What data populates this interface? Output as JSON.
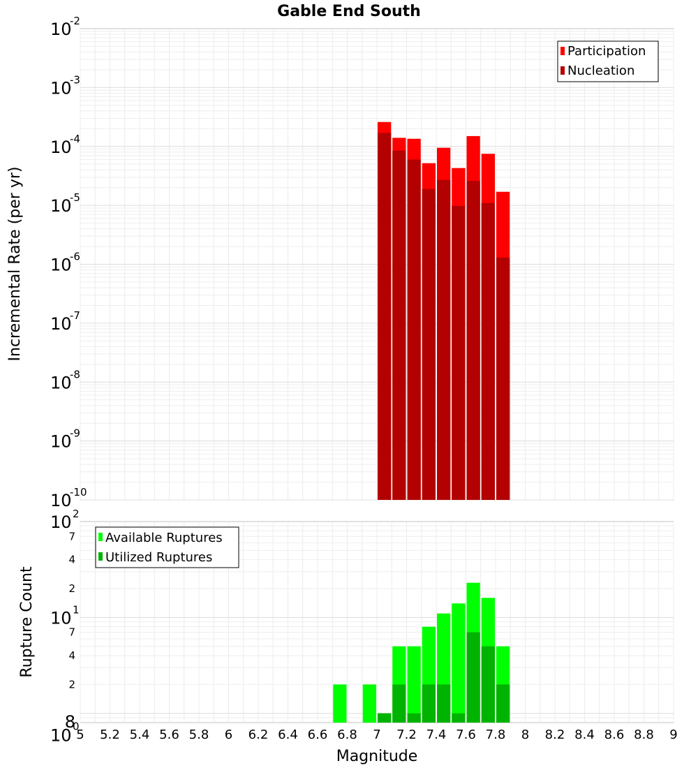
{
  "chart_data": [
    {
      "type": "bar",
      "title": "Gable End South",
      "xlabel": "",
      "ylabel": "Incremental Rate (per yr)",
      "yscale": "log",
      "ylim": [
        1e-10,
        0.01
      ],
      "xlim": [
        5,
        9
      ],
      "grid": true,
      "legend_position": "top-right",
      "ytick_labels": [
        {
          "base": "10",
          "exp": "-10",
          "value": 1e-10
        },
        {
          "base": "10",
          "exp": "-9",
          "value": 1e-09
        },
        {
          "base": "10",
          "exp": "-8",
          "value": 1e-08
        },
        {
          "base": "10",
          "exp": "-7",
          "value": 1e-07
        },
        {
          "base": "10",
          "exp": "-6",
          "value": 1e-06
        },
        {
          "base": "10",
          "exp": "-5",
          "value": 1e-05
        },
        {
          "base": "10",
          "exp": "-4",
          "value": 0.0001
        },
        {
          "base": "10",
          "exp": "-3",
          "value": 0.001
        },
        {
          "base": "10",
          "exp": "-2",
          "value": 0.01
        }
      ],
      "x": [
        7.05,
        7.15,
        7.25,
        7.35,
        7.45,
        7.55,
        7.65,
        7.75,
        7.85
      ],
      "series": [
        {
          "name": "Participation",
          "color": "#ff0000",
          "values": [
            0.00026,
            0.00014,
            0.000135,
            5.2e-05,
            9.5e-05,
            4.3e-05,
            0.00015,
            7.5e-05,
            1.7e-05
          ]
        },
        {
          "name": "Nucleation",
          "color": "#b30000",
          "values": [
            0.00017,
            8.5e-05,
            6e-05,
            1.9e-05,
            2.7e-05,
            9.8e-06,
            2.6e-05,
            1.1e-05,
            1.3e-06
          ]
        }
      ]
    },
    {
      "type": "bar",
      "title": "",
      "xlabel": "Magnitude",
      "ylabel": "Rupture Count",
      "yscale": "log",
      "ylim": [
        0.8,
        100
      ],
      "xlim": [
        5,
        9
      ],
      "grid": true,
      "legend_position": "top-left",
      "ytick_labels": [
        {
          "base": "10",
          "exp": "0",
          "value": 1
        },
        {
          "base": "10",
          "exp": "1",
          "value": 10
        },
        {
          "base": "10",
          "exp": "2",
          "value": 100
        }
      ],
      "minor_tick_labels": [
        {
          "label": "8",
          "value": 0.8
        },
        {
          "label": "2",
          "value": 2
        },
        {
          "label": "4",
          "value": 4
        },
        {
          "label": "7",
          "value": 7
        },
        {
          "label": "2",
          "value": 20
        },
        {
          "label": "4",
          "value": 40
        },
        {
          "label": "7",
          "value": 70
        }
      ],
      "x": [
        6.75,
        6.95,
        7.05,
        7.15,
        7.25,
        7.35,
        7.45,
        7.55,
        7.65,
        7.75,
        7.85
      ],
      "series": [
        {
          "name": "Available Ruptures",
          "color": "#00ff00",
          "values": [
            2,
            2,
            1,
            5,
            5,
            8,
            11,
            14,
            23,
            16,
            5
          ]
        },
        {
          "name": "Utilized Ruptures",
          "color": "#00b300",
          "values": [
            0,
            0,
            1,
            2,
            1,
            2,
            2,
            1,
            7,
            5,
            2
          ]
        }
      ],
      "xtick_labels": [
        "5",
        "5.2",
        "5.4",
        "5.6",
        "5.8",
        "6",
        "6.2",
        "6.4",
        "6.6",
        "6.8",
        "7",
        "7.2",
        "7.4",
        "7.6",
        "7.8",
        "8",
        "8.2",
        "8.4",
        "8.6",
        "8.8",
        "9"
      ]
    }
  ]
}
